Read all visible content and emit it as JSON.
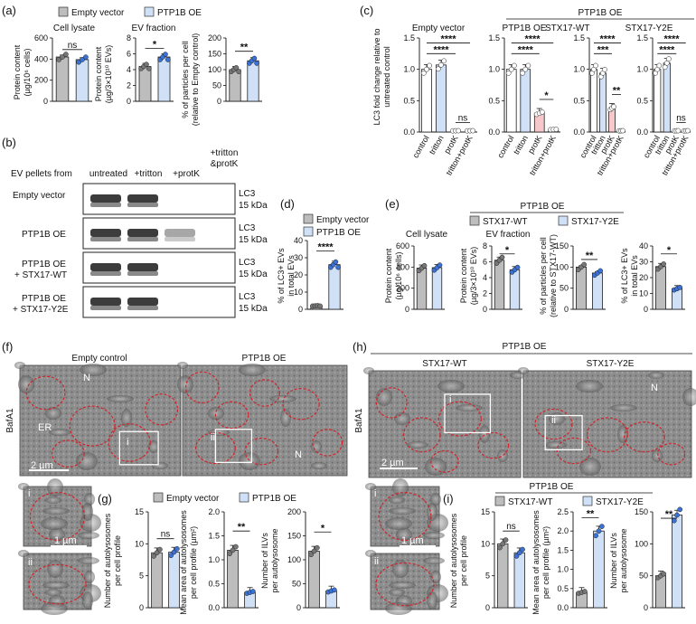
{
  "colors": {
    "grey": "#bdbdbd",
    "blue": "#cfe0f7",
    "white": "#ffffff",
    "pink": "#f6c8cc",
    "dotGrey": "#777777",
    "dotBlue": "#3a72d8",
    "dotPink": "#e06b78",
    "em_bg": "#8b8b8b",
    "em_ring": "#d2232a"
  },
  "panel_labels": {
    "a": "(a)",
    "b": "(b)",
    "c": "(c)",
    "d": "(d)",
    "e": "(e)",
    "f": "(f)",
    "g": "(g)",
    "h": "(h)",
    "i": "(i)"
  },
  "legends": {
    "empty_vector": "Empty vector",
    "ptp1b_oe": "PTP1B OE",
    "stx17_wt": "STX17-WT",
    "stx17_y2e": "STX17-Y2E",
    "ptp1b_oe_header_e": "PTP1B OE",
    "ptp1b_oe_header_i": "PTP1B OE"
  },
  "panel_a": {
    "cell_lysate_title": "Cell lysate",
    "ev_fraction_title": "EV fraction",
    "ylabel_1": "Protein content",
    "ylabel_1b": "(µg/10⁶ cells)",
    "ylabel_2": "Protein content",
    "ylabel_2b": "(µg/3×10¹⁰ EVs)",
    "ylabel_3": "% of particles per cell",
    "ylabel_3b": "(relative to Empty control)",
    "sig_1": "ns",
    "sig_2": "*",
    "sig_3": "**",
    "yticks_1": [
      "0",
      "200",
      "400",
      "600"
    ],
    "yticks_2": [
      "0",
      "2",
      "4",
      "6",
      "8"
    ],
    "yticks_3": [
      "0",
      "50",
      "100",
      "150",
      "200"
    ]
  },
  "panel_b": {
    "row_header": "EV pellets from",
    "cols": [
      "untreated",
      "+tritton",
      "+protK",
      "+tritton",
      "&protK"
    ],
    "rows": [
      "Empty vector",
      "PTP1B OE",
      "PTP1B OE",
      "+ STX17-WT",
      "PTP1B OE",
      "+ STX17-Y2E"
    ],
    "marker": "LC3",
    "size": "15 kDa"
  },
  "panel_c": {
    "ylabel_1": "LC3 fold change relative to",
    "ylabel_2": "untreated control",
    "titles": [
      "Empty vector",
      "PTP1B OE",
      "STX17-WT",
      "STX17-Y2E"
    ],
    "group_header": "PTP1B OE",
    "xticks": [
      "control",
      "tritton",
      "protK",
      "tritton+protK"
    ],
    "yticks": [
      "0.0",
      "0.5",
      "1.0",
      "1.5"
    ],
    "sig": [
      "****",
      "****",
      "ns",
      "****",
      "****",
      "*",
      "****",
      "***",
      "**",
      "****",
      "****",
      "ns"
    ]
  },
  "panel_d": {
    "ylabel_1": "% of LC3+ EVs",
    "ylabel_2": "in total EVs",
    "yticks": [
      "0",
      "10",
      "20",
      "30",
      "40"
    ],
    "sig": "****"
  },
  "panel_e": {
    "cell_lysate_title": "Cell lysate",
    "ev_fraction_title": "EV fraction",
    "ylabel_1": "Protein content",
    "ylabel_1b": "(µg/10⁶ cells)",
    "ylabel_2": "Protein content",
    "ylabel_2b": "(µg/3×10¹⁰ EVs)",
    "ylabel_3": "% of particles per cell",
    "ylabel_3b": "(relative to STX17-WT)",
    "ylabel_4": "% of LC3+ EVs",
    "ylabel_4b": "in total EVs",
    "yticks_1": [
      "0",
      "200",
      "400",
      "600"
    ],
    "yticks_2": [
      "0",
      "2",
      "4",
      "6",
      "8"
    ],
    "yticks_3": [
      "0",
      "50",
      "100",
      "150"
    ],
    "yticks_4": [
      "0",
      "10",
      "20",
      "30",
      "40"
    ],
    "sig": [
      "*",
      "**",
      "*"
    ]
  },
  "panel_f": {
    "title_left": "Empty control",
    "title_right": "PTP1B OE",
    "bafa1": "BafA1",
    "n": "N",
    "er": "ER",
    "scale_large": "2 µm",
    "scale_small": "1 µm",
    "roman": [
      "i",
      "ii"
    ]
  },
  "panel_g": {
    "ylabel_1": "Number of autolysosomes",
    "ylabel_1b": "per cell profile",
    "ylabel_2": "Mean area of autolysosomes",
    "ylabel_2b": "per cell profile (µm²)",
    "ylabel_3": "Number of ILVs",
    "ylabel_3b": "per autolysosome",
    "yticks_1": [
      "0",
      "5",
      "10",
      "15"
    ],
    "yticks_2": [
      "0.0",
      "0.5",
      "1.0",
      "1.5",
      "2.0"
    ],
    "yticks_3": [
      "0",
      "50",
      "100",
      "150",
      "200"
    ],
    "sig": [
      "ns",
      "**",
      "*"
    ]
  },
  "panel_h": {
    "header": "PTP1B OE",
    "title_left": "STX17-WT",
    "title_right": "STX17-Y2E",
    "bafa1": "BafA1",
    "n": "N",
    "scale_large": "2 µm",
    "scale_small": "1 µm",
    "roman": [
      "i",
      "ii"
    ]
  },
  "panel_i": {
    "ylabel_1": "Number of autolysosomes",
    "ylabel_1b": "per cell profile",
    "ylabel_2": "Mean area of autolysosomes",
    "ylabel_2b": "per cell profile (µm²)",
    "ylabel_3": "Number of ILVs",
    "ylabel_3b": "per autolysosome",
    "yticks_1": [
      "0",
      "5",
      "10",
      "15"
    ],
    "yticks_2": [
      "0.0",
      "0.5",
      "1.0",
      "1.5",
      "2.0",
      "2.5"
    ],
    "yticks_3": [
      "0",
      "50",
      "100",
      "150"
    ],
    "sig": [
      "ns",
      "**",
      "**"
    ]
  },
  "chart_data": [
    {
      "id": "a1",
      "type": "bar",
      "title": "Cell lysate",
      "categories": [
        "Empty vector",
        "PTP1B OE"
      ],
      "values": [
        420,
        395
      ],
      "ylim": [
        0,
        600
      ]
    },
    {
      "id": "a2",
      "type": "bar",
      "title": "EV fraction",
      "categories": [
        "Empty vector",
        "PTP1B OE"
      ],
      "values": [
        4.4,
        5.6
      ],
      "ylim": [
        0,
        8
      ]
    },
    {
      "id": "a3",
      "type": "bar",
      "title": "% of particles per cell",
      "categories": [
        "Empty vector",
        "PTP1B OE"
      ],
      "values": [
        100,
        128
      ],
      "ylim": [
        0,
        200
      ]
    },
    {
      "id": "c1",
      "type": "bar",
      "title": "Empty vector",
      "categories": [
        "control",
        "tritton",
        "protK",
        "tritton+protK"
      ],
      "values": [
        1.0,
        1.07,
        0.02,
        0.02
      ],
      "ylim": [
        0,
        1.5
      ]
    },
    {
      "id": "c2",
      "type": "bar",
      "title": "PTP1B OE",
      "categories": [
        "control",
        "tritton",
        "protK",
        "tritton+protK"
      ],
      "values": [
        1.0,
        1.0,
        0.3,
        0.04
      ],
      "ylim": [
        0,
        1.5
      ]
    },
    {
      "id": "c3",
      "type": "bar",
      "title": "STX17-WT",
      "categories": [
        "control",
        "tritton",
        "protK",
        "tritton+protK"
      ],
      "values": [
        1.0,
        0.94,
        0.38,
        0.02
      ],
      "ylim": [
        0,
        1.5
      ]
    },
    {
      "id": "c4",
      "type": "bar",
      "title": "STX17-Y2E",
      "categories": [
        "control",
        "tritton",
        "protK",
        "tritton+protK"
      ],
      "values": [
        1.0,
        1.1,
        0.02,
        0.02
      ],
      "ylim": [
        0,
        1.5
      ]
    },
    {
      "id": "d",
      "type": "bar",
      "title": "% of LC3+ EVs in total EVs",
      "categories": [
        "Empty vector",
        "PTP1B OE"
      ],
      "values": [
        2,
        26
      ],
      "ylim": [
        0,
        40
      ]
    },
    {
      "id": "e1",
      "type": "bar",
      "title": "Cell lysate",
      "categories": [
        "STX17-WT",
        "STX17-Y2E"
      ],
      "values": [
        390,
        395
      ],
      "ylim": [
        0,
        600
      ]
    },
    {
      "id": "e2",
      "type": "bar",
      "title": "EV fraction",
      "categories": [
        "STX17-WT",
        "STX17-Y2E"
      ],
      "values": [
        6.2,
        5.0
      ],
      "ylim": [
        0,
        8
      ]
    },
    {
      "id": "e3",
      "type": "bar",
      "title": "% of particles per cell",
      "categories": [
        "STX17-WT",
        "STX17-Y2E"
      ],
      "values": [
        100,
        86
      ],
      "ylim": [
        0,
        150
      ]
    },
    {
      "id": "e4",
      "type": "bar",
      "title": "% of LC3+ EVs in total EVs",
      "categories": [
        "STX17-WT",
        "STX17-Y2E"
      ],
      "values": [
        27,
        13
      ],
      "ylim": [
        0,
        40
      ]
    },
    {
      "id": "g1",
      "type": "bar",
      "title": "Number of autolysosomes per cell profile",
      "categories": [
        "Empty vector",
        "PTP1B OE"
      ],
      "values": [
        8.6,
        8.7
      ],
      "ylim": [
        0,
        15
      ]
    },
    {
      "id": "g2",
      "type": "bar",
      "title": "Mean area of autolysosomes per cell profile",
      "categories": [
        "Empty vector",
        "PTP1B OE"
      ],
      "values": [
        1.2,
        0.32
      ],
      "ylim": [
        0,
        2
      ]
    },
    {
      "id": "g3",
      "type": "bar",
      "title": "Number of ILVs per autolysosome",
      "categories": [
        "Empty vector",
        "PTP1B OE"
      ],
      "values": [
        118,
        35
      ],
      "ylim": [
        0,
        200
      ]
    },
    {
      "id": "i1",
      "type": "bar",
      "title": "Number of autolysosomes per cell profile",
      "categories": [
        "STX17-WT",
        "STX17-Y2E"
      ],
      "values": [
        10,
        8.6
      ],
      "ylim": [
        0,
        15
      ]
    },
    {
      "id": "i2",
      "type": "bar",
      "title": "Mean area of autolysosomes per cell profile",
      "categories": [
        "STX17-WT",
        "STX17-Y2E"
      ],
      "values": [
        0.4,
        2.0
      ],
      "ylim": [
        0,
        2.5
      ]
    },
    {
      "id": "i3",
      "type": "bar",
      "title": "Number of ILVs per autolysosome",
      "categories": [
        "STX17-WT",
        "STX17-Y2E"
      ],
      "values": [
        50,
        145
      ],
      "ylim": [
        0,
        150
      ]
    }
  ]
}
